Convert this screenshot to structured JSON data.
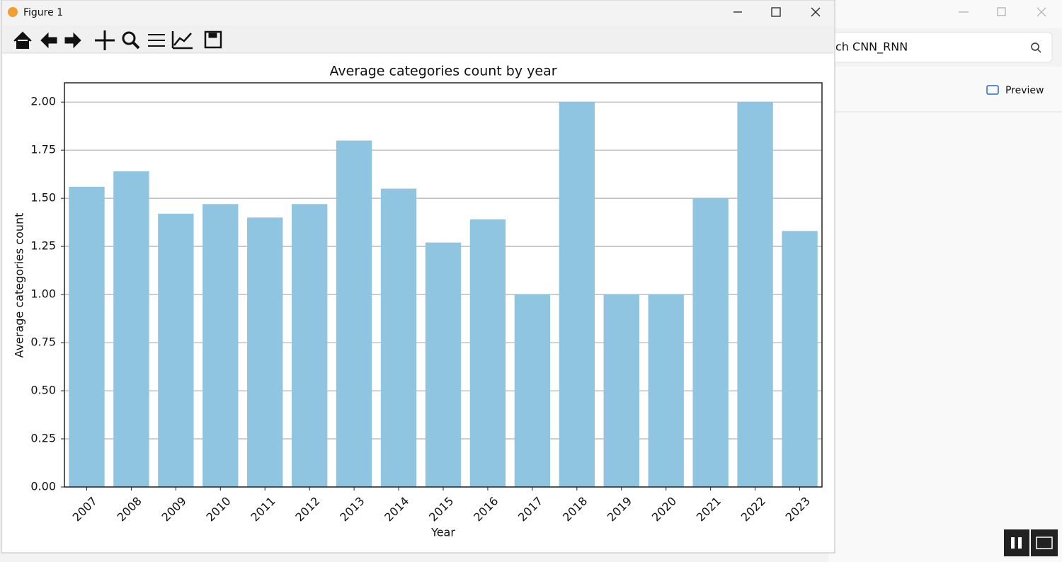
{
  "window": {
    "title": "Figure 1"
  },
  "background": {
    "search": "ch CNN_RNN",
    "preview": "Preview"
  },
  "chart_data": {
    "type": "bar",
    "title": "Average categories count by year",
    "x_label": "Year",
    "y_label": "Average categories count",
    "categories": [
      "2007",
      "2008",
      "2009",
      "2010",
      "2011",
      "2012",
      "2013",
      "2014",
      "2015",
      "2016",
      "2017",
      "2018",
      "2019",
      "2020",
      "2021",
      "2022",
      "2023"
    ],
    "values": [
      1.56,
      1.64,
      1.42,
      1.47,
      1.4,
      1.47,
      1.8,
      1.55,
      1.27,
      1.39,
      1.0,
      2.0,
      1.0,
      1.0,
      1.5,
      2.0,
      1.33
    ],
    "color": "#8fc5e1",
    "ylim": [
      0,
      2.1
    ],
    "yticks": [
      {
        "value": 0,
        "label": "0.00"
      },
      {
        "value": 0.25,
        "label": "0.25"
      },
      {
        "value": 0.5,
        "label": "0.50"
      },
      {
        "value": 0.75,
        "label": "0.75"
      },
      {
        "value": 1,
        "label": "1.00"
      },
      {
        "value": 1.25,
        "label": "1.25"
      },
      {
        "value": 1.5,
        "label": "1.50"
      },
      {
        "value": 1.75,
        "label": "1.75"
      },
      {
        "value": 2,
        "label": "2.00"
      }
    ],
    "grid": true
  }
}
